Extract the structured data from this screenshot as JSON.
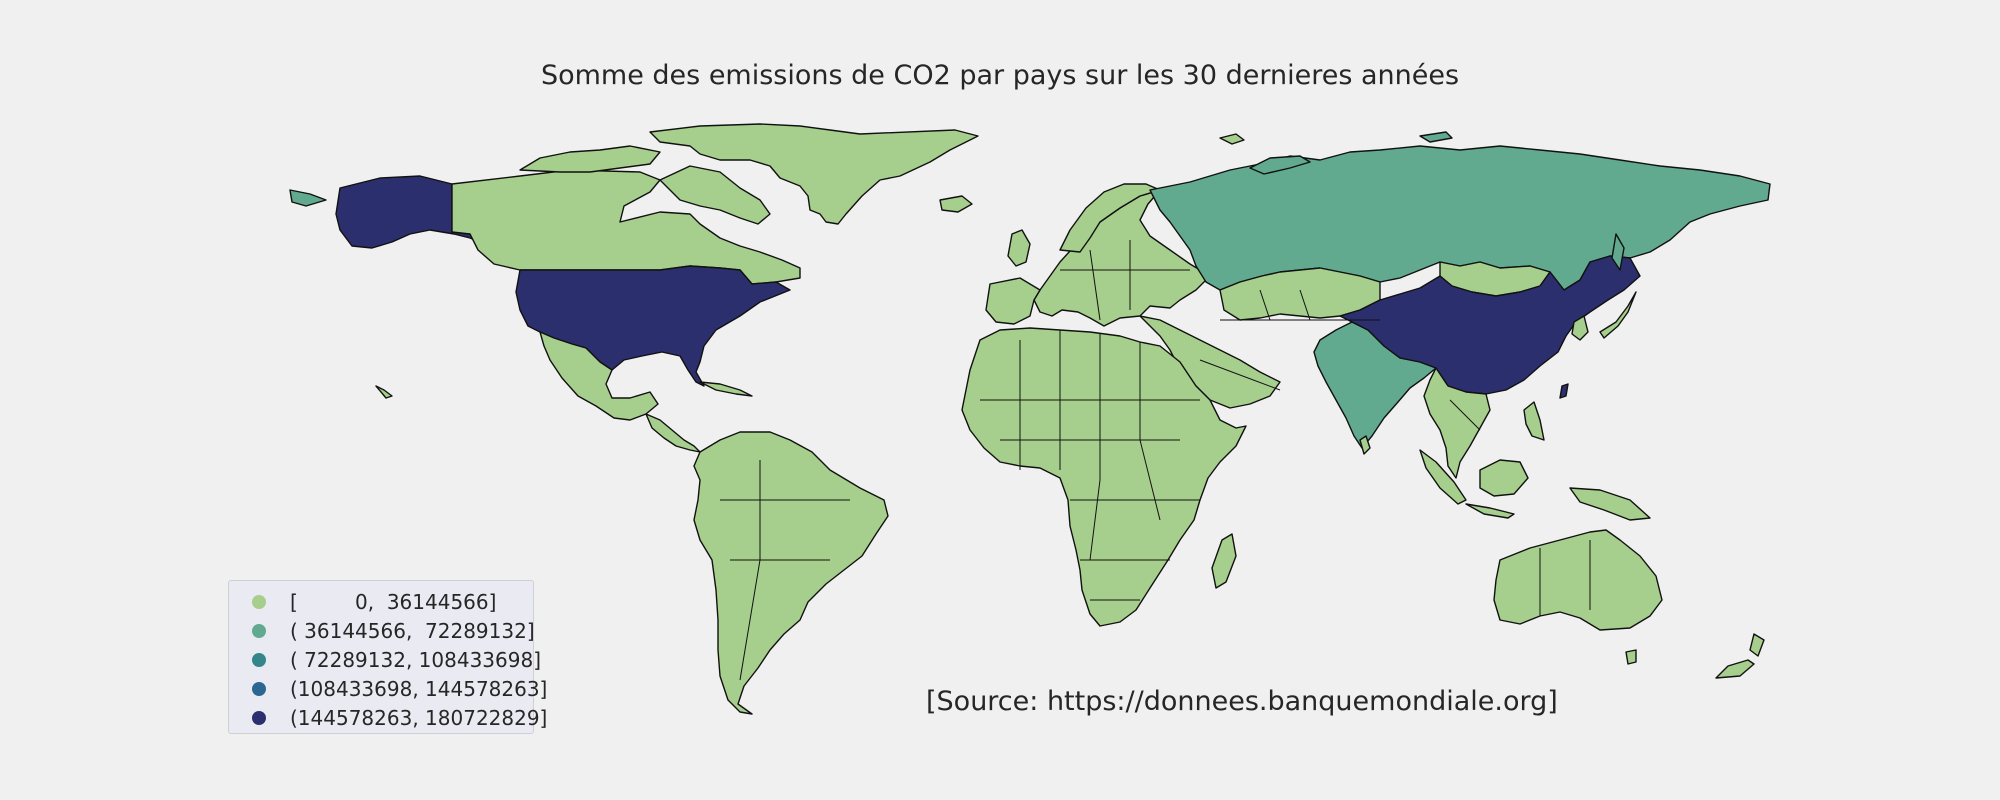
{
  "title": "Somme des emissions de CO2 par pays sur les 30 dernieres années",
  "source": "[Source: https://donnees.banquemondiale.org]",
  "colors": {
    "background": "#f0f0f0",
    "bin1": "#a6ce8c",
    "bin2": "#61aa90",
    "bin3": "#35868b",
    "bin4": "#2b6790",
    "bin5": "#2c2f6d"
  },
  "legend": [
    {
      "label": "[         0,  36144566]",
      "color": "#a6ce8c"
    },
    {
      "label": "( 36144566,  72289132]",
      "color": "#61aa90"
    },
    {
      "label": "( 72289132, 108433698]",
      "color": "#35868b"
    },
    {
      "label": "(108433698, 144578263]",
      "color": "#2b6790"
    },
    {
      "label": "(144578263, 180722829]",
      "color": "#2c2f6d"
    }
  ],
  "map_data": {
    "type": "choropleth",
    "bins": [
      [
        0,
        36144566
      ],
      [
        36144566,
        72289132
      ],
      [
        72289132,
        108433698
      ],
      [
        108433698,
        144578263
      ],
      [
        144578263,
        180722829
      ]
    ],
    "highlighted": [
      {
        "country": "United States",
        "bin": 5
      },
      {
        "country": "China",
        "bin": 5
      },
      {
        "country": "Russia",
        "bin": 2
      },
      {
        "country": "India",
        "bin": 2
      }
    ],
    "default_bin": 1
  }
}
